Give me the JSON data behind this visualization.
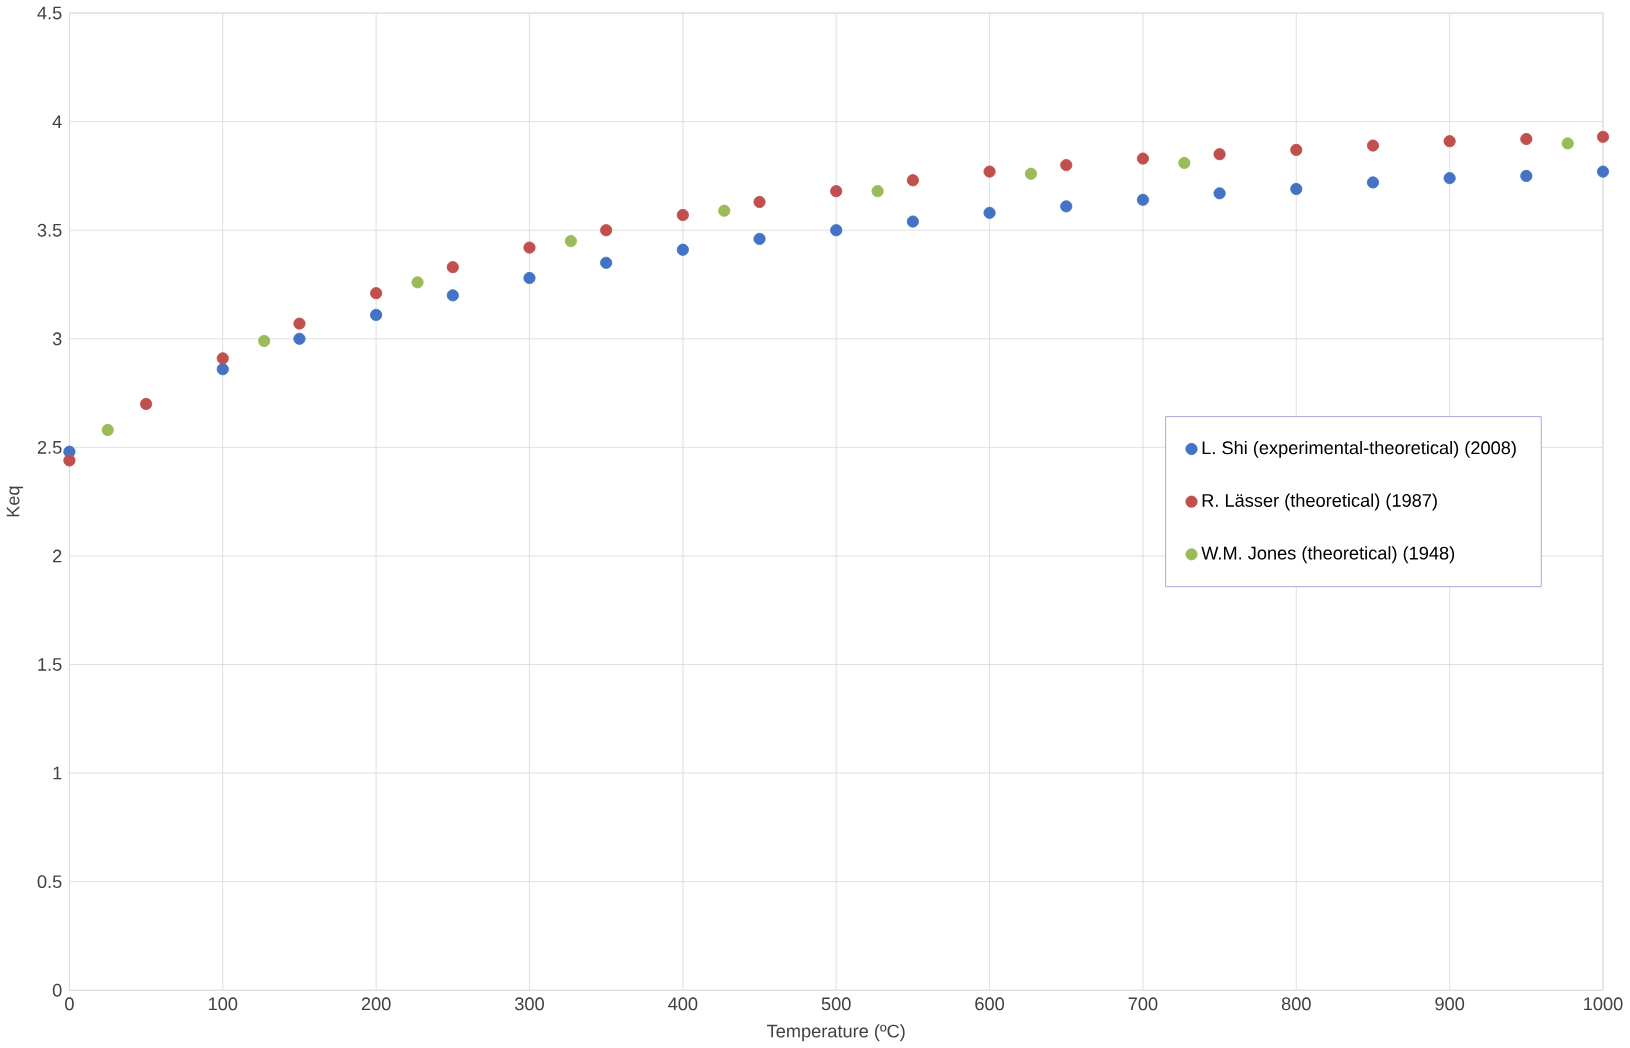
{
  "chart_data": {
    "type": "scatter",
    "xlabel": "Temperature (ºC)",
    "ylabel": "Keq",
    "xlim": [
      0,
      1000
    ],
    "xticks": [
      0,
      100,
      200,
      300,
      400,
      500,
      600,
      700,
      800,
      900,
      1000
    ],
    "ylim": [
      0,
      4.5
    ],
    "yticks": [
      0,
      0.5,
      1,
      1.5,
      2,
      2.5,
      3,
      3.5,
      4,
      4.5
    ],
    "grid": true,
    "legend": "right",
    "marker": "circle",
    "series": [
      {
        "name": "L. Shi (experimental-theoretical) (2008)",
        "color": "#4472c4",
        "x": [
          0,
          50,
          100,
          150,
          200,
          250,
          300,
          350,
          400,
          450,
          500,
          550,
          600,
          650,
          700,
          750,
          800,
          850,
          900,
          950,
          1000
        ],
        "values": [
          2.48,
          null,
          2.86,
          3.0,
          3.11,
          3.2,
          3.28,
          3.35,
          3.41,
          3.46,
          3.5,
          3.54,
          3.58,
          3.61,
          3.64,
          3.67,
          3.69,
          3.72,
          3.74,
          3.75,
          3.77
        ]
      },
      {
        "name": "R. Lässer (theoretical) (1987)",
        "color": "#c0504d",
        "x": [
          0,
          50,
          100,
          150,
          200,
          250,
          300,
          350,
          400,
          450,
          500,
          550,
          600,
          650,
          700,
          750,
          800,
          850,
          900,
          950,
          1000
        ],
        "values": [
          2.44,
          2.7,
          2.91,
          3.07,
          3.21,
          3.33,
          3.42,
          3.5,
          3.57,
          3.63,
          3.68,
          3.73,
          3.77,
          3.8,
          3.83,
          3.85,
          3.87,
          3.89,
          3.91,
          3.92,
          3.93
        ]
      },
      {
        "name": "W.M. Jones (theoretical) (1948)",
        "color": "#9bbb59",
        "x": [
          25,
          127,
          227,
          327,
          427,
          527,
          627,
          727,
          977
        ],
        "values": [
          2.58,
          2.99,
          3.26,
          3.45,
          3.59,
          3.68,
          3.76,
          3.81,
          3.9
        ]
      }
    ]
  }
}
